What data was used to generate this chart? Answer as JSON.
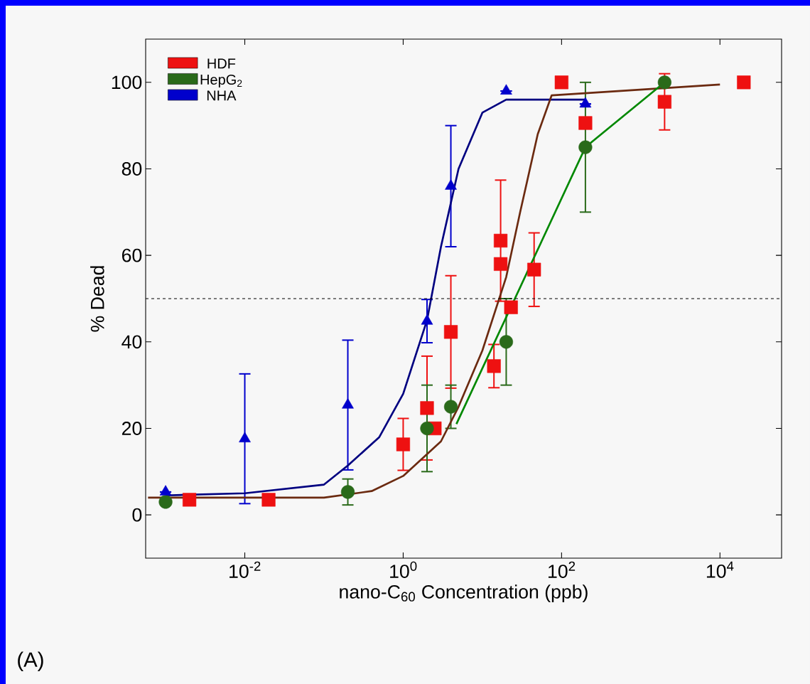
{
  "chart_data": {
    "type": "scatter",
    "xlabel": "nano-C$_{60}$ Concentration (ppb)",
    "ylabel": "% Dead",
    "log": "x",
    "xlim": [
      0.00056,
      60000
    ],
    "ylim": [
      -10,
      110
    ],
    "xticks": [
      {
        "value": 0.01,
        "label": "10$^{-2}$"
      },
      {
        "value": 1,
        "label": "10$^{0}$"
      },
      {
        "value": 100,
        "label": "10$^{2}$"
      },
      {
        "value": 10000,
        "label": "10$^{4}$"
      }
    ],
    "yticks": [
      0,
      20,
      40,
      60,
      80,
      100
    ],
    "grid": false,
    "legend": "top left",
    "ref_lines": [
      {
        "axis": "y",
        "value": 50,
        "color": "#000000",
        "line_style": "dashed"
      }
    ],
    "annotations": [
      "(A)"
    ],
    "series": [
      {
        "name": "HDF",
        "marker": "square",
        "color": "#ee1111",
        "x": [
          0.002,
          0.02,
          1,
          2,
          2.5,
          4,
          14,
          17,
          17,
          23,
          45,
          100,
          200,
          2000,
          20000
        ],
        "values": [
          3.5,
          3.5,
          16.3,
          24.7,
          20,
          42.3,
          34.4,
          58,
          63.4,
          48,
          56.7,
          100,
          90.6,
          95.5,
          100
        ],
        "errors": [
          null,
          null,
          6,
          12,
          null,
          13,
          5,
          null,
          14,
          null,
          8.5,
          null,
          null,
          6.5,
          null
        ]
      },
      {
        "name": "HepG$_{2}$",
        "marker": "circle",
        "color": "#2a6a1a",
        "x": [
          0.001,
          0.2,
          2,
          4,
          20,
          200,
          2000
        ],
        "values": [
          3,
          5.3,
          20,
          25,
          40,
          85,
          100
        ],
        "errors": [
          null,
          3,
          10,
          5,
          10,
          15,
          null
        ]
      },
      {
        "name": "NHA",
        "marker": "triangle",
        "color": "#0000cc",
        "x": [
          0.001,
          0.01,
          0.2,
          2,
          4,
          20,
          200
        ],
        "values": [
          5.3,
          17.6,
          25.4,
          44.8,
          76,
          98,
          95
        ],
        "errors": [
          null,
          15,
          15,
          5,
          14,
          null,
          null
        ]
      },
      {
        "type": "line",
        "color": "#000080",
        "marker": "none",
        "x": [
          0.001,
          0.01,
          0.1,
          0.2,
          0.5,
          1,
          2,
          3,
          5,
          10,
          20,
          200
        ],
        "values": [
          4.5,
          5,
          7,
          11.4,
          18,
          28,
          45,
          62,
          80,
          93,
          96,
          96
        ]
      },
      {
        "type": "line",
        "color": "#6b2a10",
        "marker": "none",
        "x": [
          0.0006,
          0.1,
          0.4,
          1,
          3,
          5,
          10,
          20,
          30,
          50,
          75,
          10000
        ],
        "values": [
          4,
          4,
          5.5,
          9,
          17,
          25,
          38,
          55,
          70,
          88,
          97,
          99.5
        ]
      },
      {
        "type": "line",
        "color": "#008800",
        "marker": "none",
        "x": [
          4.7,
          200,
          2000
        ],
        "values": [
          21,
          85,
          100
        ]
      }
    ]
  }
}
